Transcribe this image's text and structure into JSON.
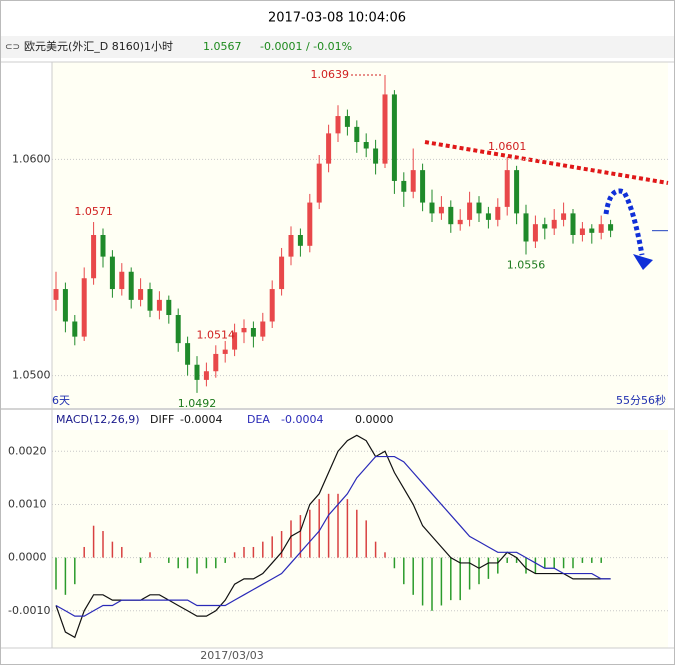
{
  "header": {
    "time": "2017-03-08 10:04:06",
    "icon": "⊂⊃",
    "symbol": "欧元美元(外汇_D 8160)1小时",
    "price": "1.0567",
    "change": "-0.0001 / -0.01%"
  },
  "chart_data": [
    {
      "type": "candlestick",
      "up_color": "#e8484a",
      "down_color": "#1f8a2a",
      "ylim": [
        1.0485,
        1.0645
      ],
      "yticks": [
        {
          "value": 1.05,
          "label": "1.0500"
        },
        {
          "value": 1.06,
          "label": "1.0600"
        }
      ],
      "grid": true,
      "x_labels": [
        "6天",
        "55分56秒"
      ],
      "annotations": [
        1.0639,
        1.0571,
        1.0514,
        1.0492,
        1.0601,
        1.0556
      ],
      "candles": [
        [
          1.0535,
          1.0548,
          1.053,
          1.054
        ],
        [
          1.054,
          1.0543,
          1.052,
          1.0525
        ],
        [
          1.0525,
          1.0528,
          1.0514,
          1.0518
        ],
        [
          1.0518,
          1.055,
          1.0516,
          1.0545
        ],
        [
          1.0545,
          1.0571,
          1.0542,
          1.0565
        ],
        [
          1.0565,
          1.0568,
          1.055,
          1.0555
        ],
        [
          1.0555,
          1.0558,
          1.0536,
          1.054
        ],
        [
          1.054,
          1.0552,
          1.0537,
          1.0548
        ],
        [
          1.0548,
          1.055,
          1.0531,
          1.0535
        ],
        [
          1.0535,
          1.0545,
          1.0532,
          1.054
        ],
        [
          1.054,
          1.0543,
          1.0527,
          1.053
        ],
        [
          1.053,
          1.0539,
          1.0526,
          1.0535
        ],
        [
          1.0535,
          1.0537,
          1.0524,
          1.0528
        ],
        [
          1.0528,
          1.0531,
          1.0511,
          1.0515
        ],
        [
          1.0515,
          1.0518,
          1.05,
          1.0505
        ],
        [
          1.0505,
          1.0509,
          1.0492,
          1.0498
        ],
        [
          1.0498,
          1.0506,
          1.0495,
          1.0502
        ],
        [
          1.0502,
          1.0514,
          1.0499,
          1.051
        ],
        [
          1.051,
          1.0516,
          1.0506,
          1.0512
        ],
        [
          1.0512,
          1.0524,
          1.0509,
          1.052
        ],
        [
          1.052,
          1.0526,
          1.0515,
          1.0522
        ],
        [
          1.0522,
          1.0525,
          1.0513,
          1.0518
        ],
        [
          1.0518,
          1.0529,
          1.0516,
          1.0525
        ],
        [
          1.0525,
          1.0544,
          1.0522,
          1.054
        ],
        [
          1.054,
          1.0559,
          1.0537,
          1.0555
        ],
        [
          1.0555,
          1.0569,
          1.0551,
          1.0565
        ],
        [
          1.0565,
          1.0568,
          1.0555,
          1.056
        ],
        [
          1.056,
          1.0584,
          1.0557,
          1.058
        ],
        [
          1.058,
          1.0602,
          1.0577,
          1.0598
        ],
        [
          1.0598,
          1.0616,
          1.0594,
          1.0612
        ],
        [
          1.0612,
          1.0625,
          1.0608,
          1.062
        ],
        [
          1.062,
          1.0623,
          1.0611,
          1.0615
        ],
        [
          1.0615,
          1.0618,
          1.0603,
          1.0608
        ],
        [
          1.0608,
          1.0612,
          1.0601,
          1.0605
        ],
        [
          1.0605,
          1.0609,
          1.0593,
          1.0598
        ],
        [
          1.0598,
          1.0639,
          1.0596,
          1.063
        ],
        [
          1.063,
          1.0632,
          1.0584,
          1.059
        ],
        [
          1.059,
          1.0594,
          1.0578,
          1.0585
        ],
        [
          1.0585,
          1.0605,
          1.0582,
          1.0595
        ],
        [
          1.0595,
          1.0598,
          1.0576,
          1.058
        ],
        [
          1.058,
          1.0586,
          1.0571,
          1.0575
        ],
        [
          1.0575,
          1.0583,
          1.0572,
          1.0578
        ],
        [
          1.0578,
          1.0581,
          1.0566,
          1.057
        ],
        [
          1.057,
          1.0577,
          1.0567,
          1.0572
        ],
        [
          1.0572,
          1.0585,
          1.0569,
          1.058
        ],
        [
          1.058,
          1.0583,
          1.0571,
          1.0575
        ],
        [
          1.0575,
          1.0578,
          1.0568,
          1.0572
        ],
        [
          1.0572,
          1.0582,
          1.0569,
          1.0578
        ],
        [
          1.0578,
          1.0601,
          1.0574,
          1.0595
        ],
        [
          1.0595,
          1.0597,
          1.057,
          1.0575
        ],
        [
          1.0575,
          1.0579,
          1.0556,
          1.0562
        ],
        [
          1.0562,
          1.0574,
          1.0559,
          1.057
        ],
        [
          1.057,
          1.0573,
          1.0563,
          1.0568
        ],
        [
          1.0568,
          1.0577,
          1.0565,
          1.0572
        ],
        [
          1.0572,
          1.058,
          1.0569,
          1.0575
        ],
        [
          1.0575,
          1.0577,
          1.0561,
          1.0565
        ],
        [
          1.0565,
          1.0571,
          1.0562,
          1.0568
        ],
        [
          1.0568,
          1.057,
          1.0561,
          1.0566
        ],
        [
          1.0566,
          1.0574,
          1.0563,
          1.057
        ],
        [
          1.057,
          1.0572,
          1.0564,
          1.0567
        ]
      ]
    },
    {
      "type": "macd",
      "title": "MACD(12,26,9)",
      "ylim": [
        -0.0017,
        0.0024
      ],
      "yticks": [
        {
          "value": 0.002,
          "label": "0.0020"
        },
        {
          "value": 0.001,
          "label": "0.0010"
        },
        {
          "value": 0,
          "label": "0.0000"
        },
        {
          "value": -0.001,
          "label": "-0.0010"
        }
      ],
      "x_label": "2017/03/03",
      "series": [
        {
          "name": "DIFF",
          "color": "#111111",
          "current": -0.0004,
          "values": [
            -0.0009,
            -0.0014,
            -0.0015,
            -0.001,
            -0.0007,
            -0.0007,
            -0.0008,
            -0.0008,
            -0.0008,
            -0.0008,
            -0.0007,
            -0.0007,
            -0.0008,
            -0.0009,
            -0.001,
            -0.0011,
            -0.0011,
            -0.001,
            -0.0008,
            -0.0005,
            -0.0004,
            -0.0004,
            -0.0003,
            -0.0001,
            0.0001,
            0.0004,
            0.0005,
            0.001,
            0.0012,
            0.0016,
            0.002,
            0.0022,
            0.0023,
            0.0022,
            0.0019,
            0.002,
            0.0016,
            0.0013,
            0.001,
            0.0006,
            0.0004,
            0.0002,
            0,
            -0.0001,
            -0.0001,
            -0.0002,
            -0.0001,
            -0.0001,
            0.0001,
            0,
            -0.0002,
            -0.0003,
            -0.0003,
            -0.0003,
            -0.0003,
            -0.0004,
            -0.0004,
            -0.0004,
            -0.0004,
            -0.0004
          ]
        },
        {
          "name": "DEA",
          "color": "#2a2ab8",
          "current": -0.0004,
          "values": [
            -0.0009,
            -0.001,
            -0.0011,
            -0.0011,
            -0.001,
            -0.0009,
            -0.0009,
            -0.0008,
            -0.0008,
            -0.0008,
            -0.0008,
            -0.0008,
            -0.0008,
            -0.0008,
            -0.0008,
            -0.0009,
            -0.0009,
            -0.0009,
            -0.0009,
            -0.0008,
            -0.0007,
            -0.0006,
            -0.0005,
            -0.0004,
            -0.0003,
            -0.0001,
            0.0001,
            0.0003,
            0.0005,
            0.0008,
            0.001,
            0.0012,
            0.0015,
            0.0017,
            0.0019,
            0.0019,
            0.0019,
            0.0018,
            0.0016,
            0.0014,
            0.0012,
            0.001,
            0.0008,
            0.0006,
            0.0004,
            0.0003,
            0.0002,
            0.0001,
            0.0001,
            0.0001,
            0,
            -0.0001,
            -0.0002,
            -0.0002,
            -0.0003,
            -0.0003,
            -0.0003,
            -0.0003,
            -0.0004,
            -0.0004
          ]
        }
      ],
      "histogram": {
        "up_color": "#d84040",
        "down_color": "#2a9a2a",
        "current": {
          "value": 0,
          "label": "0.0000"
        },
        "values": [
          -0.0006,
          -0.0007,
          -0.0005,
          0.0002,
          0.0006,
          0.0005,
          0.0003,
          0.0002,
          0,
          -0.0001,
          0.0001,
          0,
          -0.0001,
          -0.0002,
          -0.0002,
          -0.0003,
          -0.0002,
          -0.0002,
          -0.0001,
          0.0001,
          0.0002,
          0.0002,
          0.0003,
          0.0004,
          0.0005,
          0.0007,
          0.0008,
          0.0009,
          0.0011,
          0.0012,
          0.0012,
          0.0011,
          0.0009,
          0.0007,
          0.0003,
          0.0001,
          -0.0002,
          -0.0005,
          -0.0007,
          -0.0009,
          -0.001,
          -0.0009,
          -0.0008,
          -0.0008,
          -0.0006,
          -0.0005,
          -0.0004,
          -0.0003,
          -0.0001,
          -0.0001,
          -0.0003,
          -0.0003,
          -0.0002,
          -0.0002,
          -0.0002,
          -0.0002,
          -0.0001,
          -0.0001,
          -0.0001,
          0
        ]
      }
    }
  ]
}
